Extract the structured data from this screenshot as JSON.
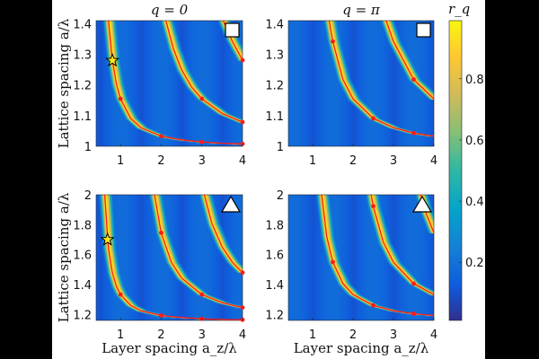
{
  "colormap": {
    "name": "parula",
    "stops": [
      "#352a87",
      "#0f5cdd",
      "#1481d6",
      "#06a4ca",
      "#2eb7a4",
      "#87bf77",
      "#d1bb59",
      "#fec832",
      "#f9fb0e"
    ]
  },
  "colorbar": {
    "label": "r_q",
    "range": [
      0.01,
      0.99
    ],
    "ticks": [
      0.2,
      0.4,
      0.6,
      0.8
    ],
    "tick_labels": [
      "0.2",
      "0.4",
      "0.6",
      "0.8"
    ]
  },
  "curve_color": "#ff1a1a",
  "chart_data": [
    {
      "type": "heatmap",
      "panel": "top-left",
      "title": "q = 0",
      "ylabel": "Lattice spacing a/λ",
      "xlabel": "",
      "xlim": [
        0.4,
        4
      ],
      "ylim": [
        1,
        1.41
      ],
      "xticks": [
        1,
        2,
        3,
        4
      ],
      "yticks": [
        1,
        1.1,
        1.2,
        1.3,
        1.4
      ],
      "ytick_labels": [
        "1",
        "1.1",
        "1.2",
        "1.3",
        "1.4"
      ],
      "marker": "square",
      "curves": [
        [
          [
            0.705,
            1.41
          ],
          [
            0.8,
            1.281
          ],
          [
            0.9,
            1.203
          ],
          [
            1,
            1.155
          ],
          [
            1.25,
            1.091
          ],
          [
            1.5,
            1.061
          ],
          [
            2,
            1.033
          ],
          [
            2.5,
            1.021
          ],
          [
            3,
            1.014
          ],
          [
            3.5,
            1.01
          ],
          [
            4,
            1.008
          ]
        ],
        [
          [
            2.115,
            1.41
          ],
          [
            2.3,
            1.319
          ],
          [
            2.5,
            1.25
          ],
          [
            2.75,
            1.193
          ],
          [
            3,
            1.155
          ],
          [
            3.5,
            1.107
          ],
          [
            4,
            1.079
          ]
        ],
        [
          [
            3.525,
            1.41
          ],
          [
            3.75,
            1.342
          ],
          [
            4,
            1.281
          ]
        ]
      ],
      "points": [
        [
          1,
          1.155
        ],
        [
          2,
          1.033
        ],
        [
          3,
          1.014
        ],
        [
          4,
          1.008
        ],
        [
          3,
          1.155
        ],
        [
          4,
          1.079
        ],
        [
          4,
          1.281
        ]
      ],
      "star": [
        0.8,
        1.28
      ]
    },
    {
      "type": "heatmap",
      "panel": "top-right",
      "title": "q = π",
      "ylabel": "",
      "xlabel": "",
      "xlim": [
        0.4,
        4
      ],
      "ylim": [
        1,
        1.41
      ],
      "xticks": [
        1,
        2,
        3,
        4
      ],
      "yticks": [
        1,
        1.1,
        1.2,
        1.3,
        1.4
      ],
      "ytick_labels": [
        "1",
        "1.1",
        "1.2",
        "1.3",
        "1.4"
      ],
      "marker": "square",
      "curves": [
        [
          [
            1.41,
            1.41
          ],
          [
            1.5,
            1.342
          ],
          [
            1.75,
            1.218
          ],
          [
            2,
            1.155
          ],
          [
            2.5,
            1.091
          ],
          [
            3,
            1.061
          ],
          [
            3.5,
            1.043
          ],
          [
            4,
            1.033
          ]
        ],
        [
          [
            2.82,
            1.41
          ],
          [
            3,
            1.342
          ],
          [
            3.5,
            1.218
          ],
          [
            4,
            1.155
          ]
        ]
      ],
      "points": [
        [
          1.5,
          1.342
        ],
        [
          2.5,
          1.091
        ],
        [
          3.5,
          1.043
        ],
        [
          3.5,
          1.218
        ]
      ],
      "star": null
    },
    {
      "type": "heatmap",
      "panel": "bottom-left",
      "title": "",
      "ylabel": "Lattice spacing a/λ",
      "xlabel": "Layer spacing a_z/λ",
      "xlim": [
        0.4,
        4
      ],
      "ylim": [
        1.16,
        2
      ],
      "xticks": [
        1,
        2,
        3,
        4
      ],
      "yticks": [
        1.2,
        1.4,
        1.6,
        1.8,
        2
      ],
      "ytick_labels": [
        "1.2",
        "1.4",
        "1.6",
        "1.8",
        "2"
      ],
      "marker": "triangle",
      "curves": [
        [
          [
            0.612,
            2
          ],
          [
            0.7,
            1.649
          ],
          [
            0.8,
            1.479
          ],
          [
            0.9,
            1.389
          ],
          [
            1,
            1.333
          ],
          [
            1.25,
            1.26
          ],
          [
            1.5,
            1.225
          ],
          [
            2,
            1.193
          ],
          [
            2.5,
            1.179
          ],
          [
            3,
            1.171
          ],
          [
            3.5,
            1.166
          ],
          [
            4,
            1.164
          ]
        ],
        [
          [
            1.837,
            2
          ],
          [
            2,
            1.746
          ],
          [
            2.25,
            1.549
          ],
          [
            2.5,
            1.443
          ],
          [
            3,
            1.333
          ],
          [
            3.5,
            1.278
          ],
          [
            4,
            1.246
          ]
        ],
        [
          [
            3.062,
            2
          ],
          [
            3.25,
            1.807
          ],
          [
            3.5,
            1.65
          ],
          [
            3.75,
            1.549
          ],
          [
            4,
            1.479
          ]
        ]
      ],
      "points": [
        [
          1,
          1.333
        ],
        [
          2,
          1.746
        ],
        [
          2,
          1.193
        ],
        [
          3,
          1.333
        ],
        [
          3,
          1.171
        ],
        [
          4,
          1.479
        ],
        [
          4,
          1.246
        ],
        [
          4,
          1.164
        ]
      ],
      "star": [
        0.68,
        1.7
      ]
    },
    {
      "type": "heatmap",
      "panel": "bottom-right",
      "title": "",
      "ylabel": "",
      "xlabel": "Layer spacing a_z/λ",
      "xlim": [
        0.4,
        4
      ],
      "ylim": [
        1.16,
        2
      ],
      "xticks": [
        1,
        2,
        3,
        4
      ],
      "yticks": [
        1.2,
        1.4,
        1.6,
        1.8,
        2
      ],
      "ytick_labels": [
        "1.2",
        "1.4",
        "1.6",
        "1.8",
        "2"
      ],
      "marker": "triangle",
      "curves": [
        [
          [
            1.225,
            2
          ],
          [
            1.35,
            1.719
          ],
          [
            1.5,
            1.55
          ],
          [
            1.75,
            1.406
          ],
          [
            2,
            1.333
          ],
          [
            2.5,
            1.26
          ],
          [
            3,
            1.225
          ],
          [
            3.5,
            1.205
          ],
          [
            4,
            1.193
          ]
        ],
        [
          [
            2.449,
            2
          ],
          [
            2.5,
            1.924
          ],
          [
            2.75,
            1.682
          ],
          [
            3,
            1.549
          ],
          [
            3.5,
            1.406
          ],
          [
            4,
            1.333
          ]
        ],
        [
          [
            3.674,
            2
          ],
          [
            3.8,
            1.881
          ],
          [
            4,
            1.746
          ]
        ]
      ],
      "points": [
        [
          1.5,
          1.55
        ],
        [
          2.5,
          1.924
        ],
        [
          2.5,
          1.26
        ],
        [
          3.5,
          1.406
        ],
        [
          3.5,
          1.205
        ]
      ],
      "star": null
    }
  ]
}
